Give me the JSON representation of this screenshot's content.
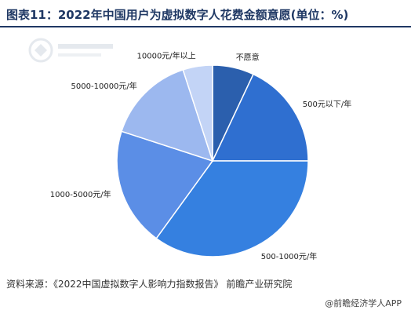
{
  "title": "图表11：2022年中国用户为虚拟数字人花费金额意愿(单位：%)",
  "source": "资料来源：《2022中国虚拟数字人影响力指数报告》 前瞻产业研究院",
  "credit": "@前瞻经济学人APP",
  "colors": {
    "title": "#1f3864",
    "background": "#ffffff"
  },
  "chart_data": {
    "type": "pie",
    "title": "2022年中国用户为虚拟数字人花费金额意愿(单位：%)",
    "start_angle_deg": 0,
    "direction": "clockwise",
    "slices": [
      {
        "label": "不愿意",
        "value": 7,
        "color": "#2b5fad"
      },
      {
        "label": "500元以下/年",
        "value": 18,
        "color": "#2f6fd0"
      },
      {
        "label": "500-1000元/年",
        "value": 35,
        "color": "#3580e0"
      },
      {
        "label": "1000-5000元/年",
        "value": 20,
        "color": "#5b8ee6"
      },
      {
        "label": "5000-10000元/年",
        "value": 15,
        "color": "#9cb8ef"
      },
      {
        "label": "10000元/年以上",
        "value": 5,
        "color": "#c3d4f6"
      }
    ]
  }
}
